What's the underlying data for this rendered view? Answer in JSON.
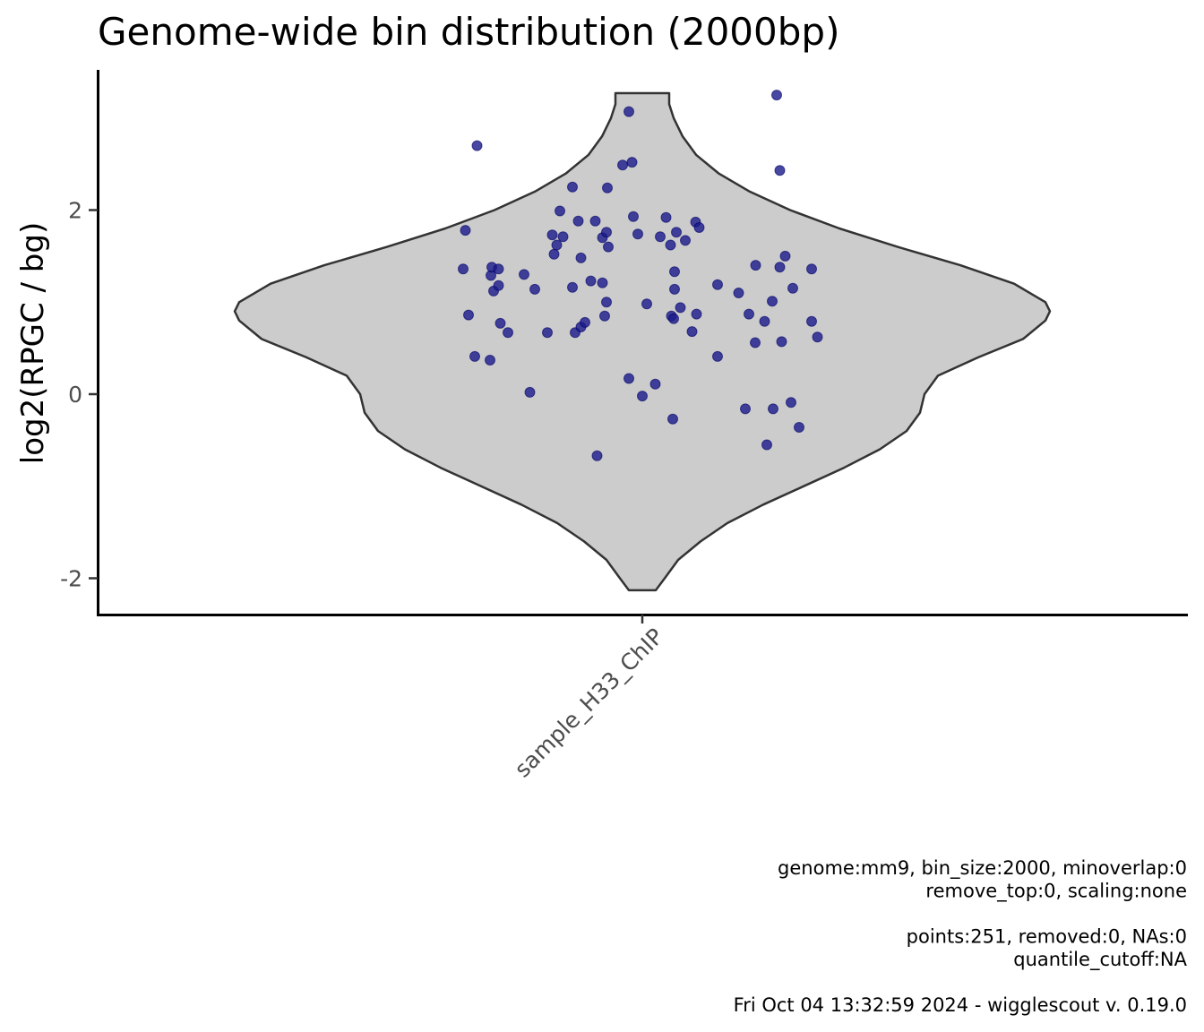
{
  "chart_data": {
    "type": "violin",
    "title": "Genome-wide bin distribution (2000bp)",
    "xlabel": "",
    "ylabel": "log2(RPGC / bg)",
    "categories": [
      "sample_H33_ChIP"
    ],
    "yticks": [
      "-2",
      "0",
      "2"
    ],
    "ylim": [
      -2.4,
      3.55
    ],
    "grid": false,
    "colors": {
      "violin_fill": "#cccccc",
      "violin_stroke": "#333333",
      "points": "#1a1a8c"
    },
    "violin": {
      "ymin": -2.13,
      "ymax": 3.27,
      "half_width_profile": [
        [
          -2.13,
          0.03
        ],
        [
          -2.0,
          0.05
        ],
        [
          -1.8,
          0.08
        ],
        [
          -1.6,
          0.13
        ],
        [
          -1.4,
          0.19
        ],
        [
          -1.2,
          0.27
        ],
        [
          -1.0,
          0.36
        ],
        [
          -0.8,
          0.45
        ],
        [
          -0.6,
          0.53
        ],
        [
          -0.4,
          0.59
        ],
        [
          -0.2,
          0.62
        ],
        [
          0.0,
          0.63
        ],
        [
          0.2,
          0.66
        ],
        [
          0.4,
          0.75
        ],
        [
          0.6,
          0.85
        ],
        [
          0.8,
          0.9
        ],
        [
          0.9,
          0.91
        ],
        [
          1.0,
          0.9
        ],
        [
          1.2,
          0.83
        ],
        [
          1.4,
          0.71
        ],
        [
          1.6,
          0.57
        ],
        [
          1.8,
          0.44
        ],
        [
          2.0,
          0.33
        ],
        [
          2.2,
          0.24
        ],
        [
          2.4,
          0.17
        ],
        [
          2.6,
          0.12
        ],
        [
          2.8,
          0.09
        ],
        [
          3.0,
          0.07
        ],
        [
          3.15,
          0.06
        ],
        [
          3.27,
          0.06
        ]
      ]
    },
    "points": [
      {
        "dx": -0.4,
        "y": 1.36
      },
      {
        "dx": -0.395,
        "y": 1.78
      },
      {
        "dx": -0.388,
        "y": 0.86
      },
      {
        "dx": -0.374,
        "y": 0.41
      },
      {
        "dx": -0.369,
        "y": 2.7
      },
      {
        "dx": -0.34,
        "y": 0.37
      },
      {
        "dx": -0.338,
        "y": 1.29
      },
      {
        "dx": -0.336,
        "y": 1.38
      },
      {
        "dx": -0.332,
        "y": 1.12
      },
      {
        "dx": -0.321,
        "y": 1.36
      },
      {
        "dx": -0.321,
        "y": 1.18
      },
      {
        "dx": -0.317,
        "y": 0.77
      },
      {
        "dx": -0.3,
        "y": 0.67
      },
      {
        "dx": -0.264,
        "y": 1.3
      },
      {
        "dx": -0.251,
        "y": 0.02
      },
      {
        "dx": -0.24,
        "y": 1.14
      },
      {
        "dx": -0.212,
        "y": 0.67
      },
      {
        "dx": -0.201,
        "y": 1.73
      },
      {
        "dx": -0.197,
        "y": 1.52
      },
      {
        "dx": -0.191,
        "y": 1.62
      },
      {
        "dx": -0.184,
        "y": 1.99
      },
      {
        "dx": -0.177,
        "y": 1.71
      },
      {
        "dx": -0.156,
        "y": 2.25
      },
      {
        "dx": -0.156,
        "y": 1.16
      },
      {
        "dx": -0.15,
        "y": 0.67
      },
      {
        "dx": -0.143,
        "y": 1.88
      },
      {
        "dx": -0.137,
        "y": 1.48
      },
      {
        "dx": -0.137,
        "y": 0.73
      },
      {
        "dx": -0.128,
        "y": 0.78
      },
      {
        "dx": -0.115,
        "y": 1.23
      },
      {
        "dx": -0.105,
        "y": 1.88
      },
      {
        "dx": -0.101,
        "y": -0.67
      },
      {
        "dx": -0.089,
        "y": 1.7
      },
      {
        "dx": -0.089,
        "y": 1.21
      },
      {
        "dx": -0.084,
        "y": 0.85
      },
      {
        "dx": -0.08,
        "y": 1.76
      },
      {
        "dx": -0.08,
        "y": 1.0
      },
      {
        "dx": -0.078,
        "y": 2.24
      },
      {
        "dx": -0.076,
        "y": 1.6
      },
      {
        "dx": -0.044,
        "y": 2.49
      },
      {
        "dx": -0.03,
        "y": 3.07
      },
      {
        "dx": -0.03,
        "y": 0.17
      },
      {
        "dx": -0.023,
        "y": 2.52
      },
      {
        "dx": -0.02,
        "y": 1.93
      },
      {
        "dx": -0.01,
        "y": 1.74
      },
      {
        "dx": 0.0,
        "y": -0.02
      },
      {
        "dx": 0.01,
        "y": 0.98
      },
      {
        "dx": 0.029,
        "y": 0.11
      },
      {
        "dx": 0.04,
        "y": 1.71
      },
      {
        "dx": 0.053,
        "y": 1.92
      },
      {
        "dx": 0.063,
        "y": 1.62
      },
      {
        "dx": 0.065,
        "y": 0.85
      },
      {
        "dx": 0.068,
        "y": -0.27
      },
      {
        "dx": 0.07,
        "y": 0.82
      },
      {
        "dx": 0.072,
        "y": 1.33
      },
      {
        "dx": 0.072,
        "y": 1.14
      },
      {
        "dx": 0.076,
        "y": 1.76
      },
      {
        "dx": 0.085,
        "y": 0.94
      },
      {
        "dx": 0.096,
        "y": 1.67
      },
      {
        "dx": 0.111,
        "y": 0.68
      },
      {
        "dx": 0.119,
        "y": 1.87
      },
      {
        "dx": 0.121,
        "y": 0.87
      },
      {
        "dx": 0.127,
        "y": 1.81
      },
      {
        "dx": 0.168,
        "y": 0.41
      },
      {
        "dx": 0.168,
        "y": 1.19
      },
      {
        "dx": 0.215,
        "y": 1.1
      },
      {
        "dx": 0.23,
        "y": -0.16
      },
      {
        "dx": 0.238,
        "y": 0.87
      },
      {
        "dx": 0.252,
        "y": 0.56
      },
      {
        "dx": 0.253,
        "y": 1.4
      },
      {
        "dx": 0.273,
        "y": 0.79
      },
      {
        "dx": 0.278,
        "y": -0.55
      },
      {
        "dx": 0.29,
        "y": 1.01
      },
      {
        "dx": 0.292,
        "y": -0.16
      },
      {
        "dx": 0.3,
        "y": 3.25
      },
      {
        "dx": 0.307,
        "y": 2.43
      },
      {
        "dx": 0.307,
        "y": 1.38
      },
      {
        "dx": 0.311,
        "y": 0.57
      },
      {
        "dx": 0.319,
        "y": 1.5
      },
      {
        "dx": 0.332,
        "y": -0.09
      },
      {
        "dx": 0.336,
        "y": 1.15
      },
      {
        "dx": 0.35,
        "y": -0.36
      },
      {
        "dx": 0.378,
        "y": 0.79
      },
      {
        "dx": 0.378,
        "y": 1.36
      },
      {
        "dx": 0.391,
        "y": 0.62
      }
    ],
    "caption": [
      "genome:mm9, bin_size:2000, minoverlap:0",
      "remove_top:0, scaling:none",
      "",
      "points:251, removed:0, NAs:0",
      "quantile_cutoff:NA",
      "",
      "Fri Oct 04 13:32:59 2024 - wigglescout v. 0.19.0"
    ]
  }
}
